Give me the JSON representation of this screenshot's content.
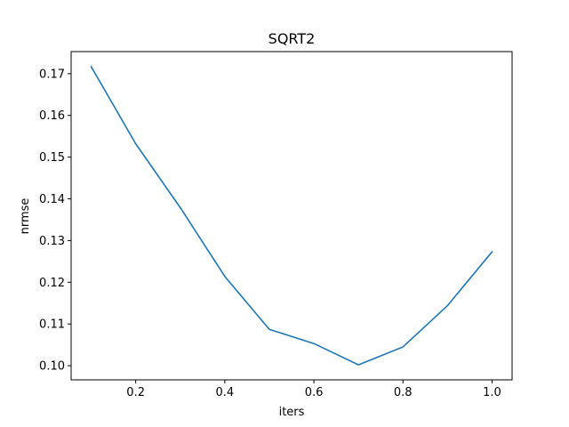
{
  "chart_data": {
    "type": "line",
    "title": "SQRT2",
    "xlabel": "iters",
    "ylabel": "nrmse",
    "x": [
      0.1,
      0.2,
      0.3,
      0.4,
      0.5,
      0.6,
      0.7,
      0.8,
      0.9,
      1.0
    ],
    "series": [
      {
        "values": [
          0.1717,
          0.1532,
          0.1379,
          0.1214,
          0.1087,
          0.1053,
          0.1002,
          0.1045,
          0.1144,
          0.1273
        ],
        "color": "#1f77b4"
      }
    ],
    "xlim": [
      0.055,
      1.045
    ],
    "ylim": [
      0.0966,
      0.1753
    ],
    "xticks": [
      0.2,
      0.4,
      0.6,
      0.8,
      1.0
    ],
    "xtick_labels": [
      "0.2",
      "0.4",
      "0.6",
      "0.8",
      "1.0"
    ],
    "yticks": [
      0.1,
      0.11,
      0.12,
      0.13,
      0.14,
      0.15,
      0.16,
      0.17
    ],
    "ytick_labels": [
      "0.10",
      "0.11",
      "0.12",
      "0.13",
      "0.14",
      "0.15",
      "0.16",
      "0.17"
    ],
    "grid": false,
    "legend": false
  }
}
